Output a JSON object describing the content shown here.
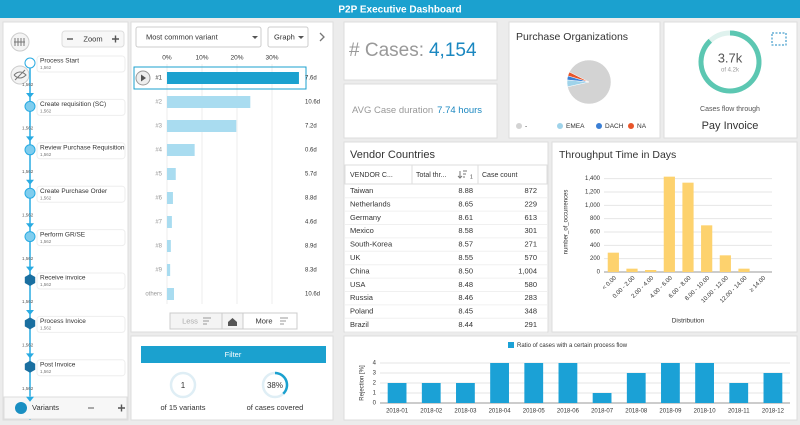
{
  "header": {
    "title": "P2P Executive Dashboard"
  },
  "process": {
    "zoom": "Zoom",
    "nodes": [
      {
        "label": "Process Start",
        "count": "1,562"
      },
      {
        "label": "Create requisition (SC)",
        "count": "1,562"
      },
      {
        "label": "Review Purchase Requisition",
        "count": "1,562"
      },
      {
        "label": "Create Purchase Order",
        "count": "1,562"
      },
      {
        "label": "Perform GR/SE",
        "count": "1,562"
      },
      {
        "label": "Receive invoice",
        "count": "1,562"
      },
      {
        "label": "Process Invoice",
        "count": "1,562"
      },
      {
        "label": "Post Invoice",
        "count": "1,562"
      }
    ],
    "edges": [
      "1,562",
      "1,562",
      "1,562",
      "1,562",
      "1,562",
      "1,562",
      "1,562",
      "1,562"
    ],
    "footer": "Variants"
  },
  "variant_controls": {
    "dropdown": "Most common variant",
    "view": "Graph",
    "less": "Less",
    "more": "More",
    "filter": "Filter"
  },
  "filter_stats": {
    "variants": {
      "value": 1,
      "caption": "of 15 variants"
    },
    "covered": {
      "value": 38,
      "label": "38%",
      "caption": "of cases covered"
    }
  },
  "kpis": {
    "cases_label": "# Cases:",
    "cases_value": "4,154",
    "duration_label": "AVG Case duration",
    "duration_value": "7.74 hours"
  },
  "gauge": {
    "flow_through": {
      "value": 3700,
      "label": "3.7k"
    },
    "total": {
      "value": 4200,
      "label": "of 4.2k"
    },
    "caption": "Cases flow through",
    "activity": "Pay Invoice"
  },
  "table": {
    "title": "Vendor Countries",
    "columns": [
      "VENDOR C...",
      "Total thr...",
      "Case count"
    ],
    "sort_badge": "1",
    "rows": [
      [
        "Taiwan",
        "8.88",
        "872"
      ],
      [
        "Netherlands",
        "8.65",
        "229"
      ],
      [
        "Germany",
        "8.61",
        "613"
      ],
      [
        "Mexico",
        "8.58",
        "301"
      ],
      [
        "South-Korea",
        "8.57",
        "271"
      ],
      [
        "UK",
        "8.55",
        "570"
      ],
      [
        "China",
        "8.50",
        "1,004"
      ],
      [
        "USA",
        "8.48",
        "580"
      ],
      [
        "Russia",
        "8.46",
        "283"
      ],
      [
        "Poland",
        "8.45",
        "348"
      ],
      [
        "Brazil",
        "8.44",
        "291"
      ]
    ]
  },
  "chart_data": [
    {
      "type": "bar",
      "orientation": "horizontal",
      "categories": [
        "#1",
        "#2",
        "#3",
        "#4",
        "#5",
        "#6",
        "#7",
        "#8",
        "#9",
        "others"
      ],
      "values": [
        37.7,
        23.8,
        19.8,
        7.9,
        2.5,
        1.7,
        1.4,
        1.1,
        0.9,
        2.0
      ],
      "value_labels": [
        "7.6d",
        "10.6d",
        "7.2d",
        "0.6d",
        "5.7d",
        "8.8d",
        "4.6d",
        "8.9d",
        "8.3d",
        "10.6d"
      ],
      "color": "#a9dcf0",
      "highlight_color": "#1ba1cf",
      "xlim": [
        0,
        38
      ],
      "xticks": [
        {
          "value": 0,
          "label": "0%"
        },
        {
          "value": 10,
          "label": "10%"
        },
        {
          "value": 20,
          "label": "20%"
        },
        {
          "value": 30,
          "label": "30%"
        }
      ],
      "grid": true
    },
    {
      "type": "pie",
      "title": "Purchase Organizations",
      "categories": [
        "-",
        "EMEA",
        "DACH",
        "NA"
      ],
      "values": [
        89,
        5,
        3,
        3
      ],
      "colors": [
        "#d3d3d3",
        "#9fd3ea",
        "#3a7fd5",
        "#e8552a"
      ]
    },
    {
      "type": "bar",
      "title": "Throughput Time in Days",
      "x_label": "Distribution",
      "y_label": "number_of_occurrences",
      "categories": [
        "< 0.00",
        "0.00 - 2.00",
        "2.00 - 4.00",
        "4.00 - 6.00",
        "6.00 - 8.00",
        "8.00 - 10.00",
        "10.00 - 12.00",
        "12.00 - 14.00",
        "≥ 14.00"
      ],
      "values": [
        290,
        50,
        30,
        1430,
        1340,
        700,
        250,
        50,
        0
      ],
      "color": "#fdd26e",
      "ylim": [
        0,
        1500
      ],
      "yticks": [
        0,
        200,
        400,
        600,
        800,
        {
          "value": 1000,
          "label": "1,000"
        },
        {
          "value": 1200,
          "label": "1,200"
        },
        {
          "value": 1400,
          "label": "1,400"
        }
      ],
      "grid": true
    },
    {
      "type": "bar",
      "title": "Ratio of cases with a certain process flow",
      "y_label": "Rejection [%]",
      "categories": [
        "2018-01",
        "2018-02",
        "2018-03",
        "2018-04",
        "2018-05",
        "2018-06",
        "2018-07",
        "2018-08",
        "2018-09",
        "2018-10",
        "2018-11",
        "2018-12"
      ],
      "values": [
        2,
        2,
        2,
        4,
        4,
        4,
        1,
        3,
        4,
        4,
        2,
        3
      ],
      "color": "#1ba1d6",
      "ylim": [
        0,
        4
      ],
      "yticks": [
        0,
        1,
        2,
        3,
        4
      ],
      "grid": true
    }
  ]
}
